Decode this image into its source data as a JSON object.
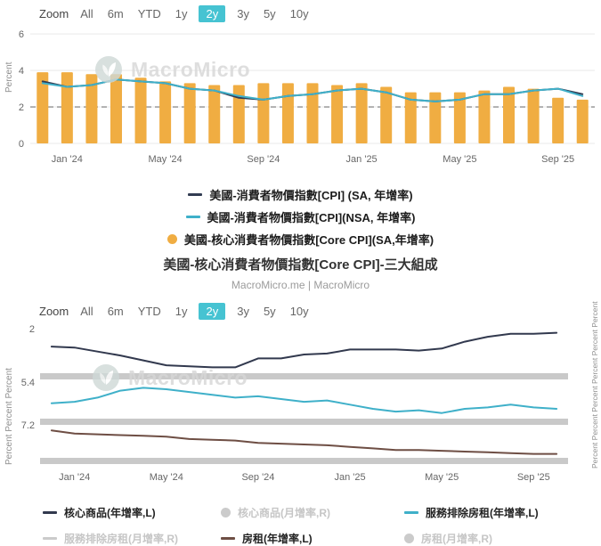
{
  "top": {
    "zoom": {
      "label": "Zoom",
      "options": [
        "All",
        "6m",
        "YTD",
        "1y",
        "2y",
        "3y",
        "5y",
        "10y"
      ],
      "selected": "2y"
    },
    "axis_left_title": "Percent",
    "watermark": "MacroMicro",
    "legend": [
      {
        "label": "美國-消費者物價指數[CPI] (SA, 年增率)",
        "marker": "line",
        "color": "#323c52"
      },
      {
        "label": "美國-消費者物價指數[CPI](NSA, 年增率)",
        "marker": "line",
        "color": "#3fb0c9"
      },
      {
        "label": "美國-核心消費者物價指數[Core CPI](SA,年增率)",
        "marker": "circle",
        "color": "#f0ad42"
      }
    ]
  },
  "middle": {
    "title": "美國-核心消費者物價指數[Core CPI]-三大組成",
    "credit": "MacroMicro.me | MacroMicro"
  },
  "bottom": {
    "zoom": {
      "label": "Zoom",
      "options": [
        "All",
        "6m",
        "YTD",
        "1y",
        "2y",
        "3y",
        "5y",
        "10y"
      ],
      "selected": "2y"
    },
    "axis_left_title": "Percent Percent Percent",
    "axis_right_title": "Percent Percent Percent Percent Percent Percent",
    "watermark": "MacroMicro",
    "legend": [
      {
        "label": "核心商品(年增率,L)",
        "marker": "line",
        "color": "#32394e",
        "active": true
      },
      {
        "label": "核心商品(月增率,R)",
        "marker": "circle",
        "color": "#cbcbcb",
        "active": false
      },
      {
        "label": "服務排除房租(年增率,L)",
        "marker": "line",
        "color": "#3fb0c9",
        "active": true
      },
      {
        "label": "服務排除房租(月增率,R)",
        "marker": "line",
        "color": "#cbcbcb",
        "active": false
      },
      {
        "label": "房租(年增率,L)",
        "marker": "line",
        "color": "#6e4e44",
        "active": true
      },
      {
        "label": "房租(月增率,R)",
        "marker": "circle",
        "color": "#cbcbcb",
        "active": false
      }
    ]
  },
  "chart_data": [
    {
      "type": "bar",
      "title": "US CPI (SA/NSA YoY) with Core CPI bars",
      "ylabel": "Percent",
      "ylim": [
        0,
        6.3
      ],
      "yticks": [
        0,
        2,
        4,
        6
      ],
      "reference_line": 2,
      "x": [
        "Dec '23",
        "Jan '24",
        "Feb '24",
        "Mar '24",
        "Apr '24",
        "May '24",
        "Jun '24",
        "Jul '24",
        "Aug '24",
        "Sep '24",
        "Oct '24",
        "Nov '24",
        "Dec '24",
        "Jan '25",
        "Feb '25",
        "Mar '25",
        "Apr '25",
        "May '25",
        "Jun '25",
        "Jul '25",
        "Aug '25",
        "Sep '25",
        "Oct '25"
      ],
      "x_ticks": [
        {
          "index": 1,
          "label": "Jan '24"
        },
        {
          "index": 5,
          "label": "May '24"
        },
        {
          "index": 9,
          "label": "Sep '24"
        },
        {
          "index": 13,
          "label": "Jan '25"
        },
        {
          "index": 17,
          "label": "May '25"
        },
        {
          "index": 21,
          "label": "Sep '25"
        }
      ],
      "bar_series": {
        "name": "美國-核心消費者物價指數[Core CPI](SA,年增率)",
        "color": "#f0ad42",
        "values": [
          3.9,
          3.9,
          3.8,
          3.8,
          3.6,
          3.4,
          3.3,
          3.2,
          3.2,
          3.3,
          3.3,
          3.3,
          3.2,
          3.3,
          3.1,
          2.8,
          2.8,
          2.8,
          2.9,
          3.1,
          3.0,
          2.5,
          2.4
        ]
      },
      "line_series": [
        {
          "name": "美國-消費者物價指數[CPI] (SA, 年增率)",
          "color": "#323c52",
          "values": [
            3.4,
            3.1,
            3.2,
            3.5,
            3.4,
            3.3,
            3.0,
            2.9,
            2.5,
            2.4,
            2.6,
            2.7,
            2.9,
            3.0,
            2.8,
            2.4,
            2.3,
            2.4,
            2.7,
            2.7,
            2.9,
            3.0,
            2.7
          ]
        },
        {
          "name": "美國-消費者物價指數[CPI](NSA, 年增率)",
          "color": "#3fb0c9",
          "values": [
            3.3,
            3.1,
            3.2,
            3.5,
            3.4,
            3.3,
            3.0,
            2.9,
            2.6,
            2.4,
            2.6,
            2.7,
            2.9,
            3.0,
            2.8,
            2.4,
            2.3,
            2.4,
            2.7,
            2.7,
            2.9,
            3.0,
            2.6
          ]
        }
      ]
    },
    {
      "type": "line",
      "title": "美國-核心消費者物價指數[Core CPI]-三大組成",
      "ylabel": "Percent",
      "x": [
        "Dec '23",
        "Jan '24",
        "Feb '24",
        "Mar '24",
        "Apr '24",
        "May '24",
        "Jun '24",
        "Jul '24",
        "Aug '24",
        "Sep '24",
        "Oct '24",
        "Nov '24",
        "Dec '24",
        "Jan '25",
        "Feb '25",
        "Mar '25",
        "Apr '25",
        "May '25",
        "Jun '25",
        "Jul '25",
        "Aug '25",
        "Sep '25",
        "Oct '25"
      ],
      "x_ticks": [
        {
          "index": 1,
          "label": "Jan '24"
        },
        {
          "index": 5,
          "label": "May '24"
        },
        {
          "index": 9,
          "label": "Sep '24"
        },
        {
          "index": 13,
          "label": "Jan '25"
        },
        {
          "index": 17,
          "label": "May '25"
        },
        {
          "index": 21,
          "label": "Sep '25"
        }
      ],
      "panels": [
        {
          "name": "核心商品(年增率,L)",
          "color": "#32394e",
          "ylim": [
            -2.5,
            2.2
          ],
          "tick": {
            "value": 2,
            "label": "2"
          },
          "values": [
            0.2,
            0.1,
            -0.3,
            -0.7,
            -1.2,
            -1.7,
            -1.8,
            -1.9,
            -1.9,
            -1.0,
            -1.0,
            -0.6,
            -0.5,
            -0.1,
            -0.1,
            -0.1,
            -0.2,
            0.0,
            0.7,
            1.2,
            1.5,
            1.5,
            1.6
          ]
        },
        {
          "name": "服務排除房租(年增率,L)",
          "color": "#3fb0c9",
          "ylim": [
            2.8,
            5.6
          ],
          "tick": {
            "value": 5.4,
            "label": "5.4"
          },
          "values": [
            3.9,
            4.0,
            4.3,
            4.8,
            5.0,
            4.9,
            4.7,
            4.5,
            4.3,
            4.4,
            4.2,
            4.0,
            4.1,
            3.8,
            3.5,
            3.3,
            3.4,
            3.2,
            3.5,
            3.6,
            3.8,
            3.6,
            3.5
          ]
        },
        {
          "name": "房租(年增率,L)",
          "color": "#6e4e44",
          "ylim": [
            3.0,
            7.2
          ],
          "tick": {
            "value": 7.2,
            "label": "7.2"
          },
          "values": [
            6.5,
            6.1,
            6.0,
            5.9,
            5.8,
            5.7,
            5.4,
            5.3,
            5.2,
            4.9,
            4.8,
            4.7,
            4.6,
            4.4,
            4.2,
            4.0,
            4.0,
            3.9,
            3.8,
            3.7,
            3.6,
            3.5,
            3.5
          ]
        }
      ]
    }
  ]
}
